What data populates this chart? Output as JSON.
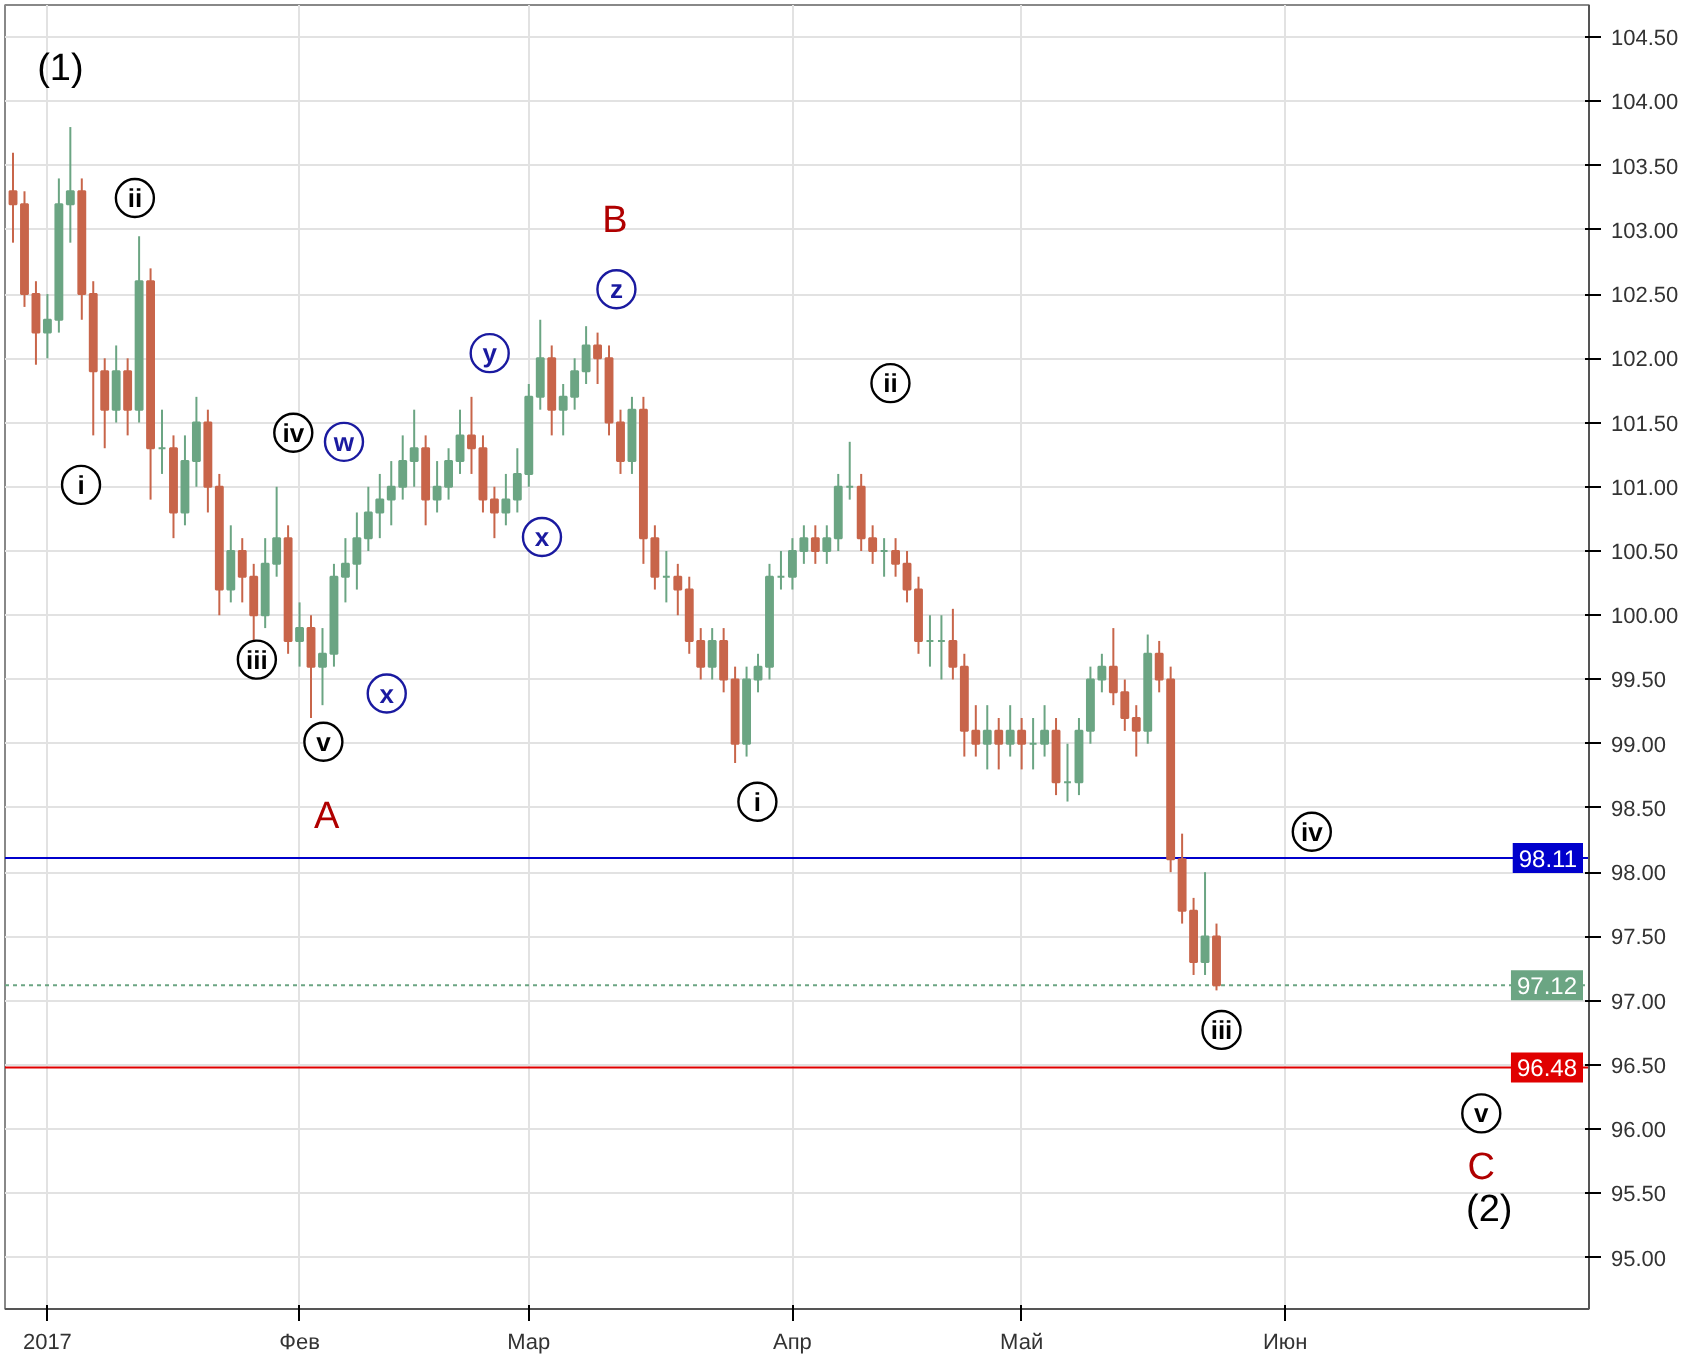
{
  "chart_data": {
    "type": "candlestick",
    "categories": [
      null,
      null,
      null,
      "2017",
      null,
      null,
      null,
      null,
      null,
      null,
      null,
      null,
      null,
      null,
      null,
      null,
      null,
      null,
      null,
      null,
      null,
      null,
      null,
      null,
      null,
      "Фев",
      null,
      null,
      null,
      null,
      null,
      null,
      null,
      null,
      null,
      null,
      null,
      null,
      null,
      null,
      null,
      null,
      null,
      null,
      null,
      "Мар",
      null,
      null,
      null,
      null,
      null,
      null,
      null,
      null,
      null,
      null,
      null,
      null,
      null,
      null,
      null,
      null,
      null,
      null,
      null,
      null,
      null,
      null,
      "Апр",
      null,
      null,
      null,
      null,
      null,
      null,
      null,
      null,
      null,
      null,
      null,
      null,
      null,
      null,
      null,
      null,
      null,
      null,
      null,
      "Май",
      null,
      null,
      null,
      null,
      null,
      null,
      null,
      null,
      null,
      null,
      null,
      null,
      null,
      null,
      null,
      null,
      null,
      null,
      null,
      null,
      null,
      null,
      "Июн",
      null,
      null,
      null,
      null,
      null,
      null,
      null,
      null,
      null,
      null,
      null,
      null,
      null,
      null,
      null,
      null,
      null,
      null,
      null,
      null,
      null,
      null,
      null,
      null,
      null,
      null
    ],
    "ohlc": [
      [
        103.3,
        103.6,
        102.9,
        103.2
      ],
      [
        103.2,
        103.3,
        102.4,
        102.5
      ],
      [
        102.5,
        102.6,
        101.95,
        102.2
      ],
      [
        102.2,
        102.5,
        102.0,
        102.3
      ],
      [
        102.3,
        103.4,
        102.2,
        103.2
      ],
      [
        103.2,
        103.8,
        102.9,
        103.3
      ],
      [
        103.3,
        103.4,
        102.3,
        102.5
      ],
      [
        102.5,
        102.6,
        101.4,
        101.9
      ],
      [
        101.9,
        102.0,
        101.3,
        101.6
      ],
      [
        101.6,
        102.1,
        101.5,
        101.9
      ],
      [
        101.9,
        102.0,
        101.4,
        101.6
      ],
      [
        101.6,
        102.95,
        101.5,
        102.6
      ],
      [
        102.6,
        102.7,
        100.9,
        101.3
      ],
      [
        101.3,
        101.6,
        101.1,
        101.3
      ],
      [
        101.3,
        101.4,
        100.6,
        100.8
      ],
      [
        100.8,
        101.4,
        100.7,
        101.2
      ],
      [
        101.2,
        101.7,
        101.0,
        101.5
      ],
      [
        101.5,
        101.6,
        100.8,
        101.0
      ],
      [
        101.0,
        101.1,
        100.0,
        100.2
      ],
      [
        100.2,
        100.7,
        100.1,
        100.5
      ],
      [
        100.5,
        100.6,
        100.1,
        100.3
      ],
      [
        100.3,
        100.4,
        99.8,
        100.0
      ],
      [
        100.0,
        100.6,
        99.9,
        100.4
      ],
      [
        100.4,
        101.0,
        100.3,
        100.6
      ],
      [
        100.6,
        100.7,
        99.7,
        99.8
      ],
      [
        99.8,
        100.1,
        99.6,
        99.9
      ],
      [
        99.9,
        100.0,
        99.2,
        99.6
      ],
      [
        99.6,
        99.9,
        99.3,
        99.7
      ],
      [
        99.7,
        100.4,
        99.6,
        100.3
      ],
      [
        100.3,
        100.6,
        100.1,
        100.4
      ],
      [
        100.4,
        100.8,
        100.2,
        100.6
      ],
      [
        100.6,
        101.0,
        100.5,
        100.8
      ],
      [
        100.8,
        101.1,
        100.6,
        100.9
      ],
      [
        100.9,
        101.2,
        100.7,
        101.0
      ],
      [
        101.0,
        101.4,
        100.9,
        101.2
      ],
      [
        101.2,
        101.6,
        101.0,
        101.3
      ],
      [
        101.3,
        101.4,
        100.7,
        100.9
      ],
      [
        100.9,
        101.2,
        100.8,
        101.0
      ],
      [
        101.0,
        101.3,
        100.9,
        101.2
      ],
      [
        101.2,
        101.6,
        101.1,
        101.4
      ],
      [
        101.4,
        101.7,
        101.1,
        101.3
      ],
      [
        101.3,
        101.4,
        100.8,
        100.9
      ],
      [
        100.9,
        101.0,
        100.6,
        100.8
      ],
      [
        100.8,
        101.1,
        100.7,
        100.9
      ],
      [
        100.9,
        101.3,
        100.8,
        101.1
      ],
      [
        101.1,
        101.8,
        101.0,
        101.7
      ],
      [
        101.7,
        102.3,
        101.6,
        102.0
      ],
      [
        102.0,
        102.1,
        101.4,
        101.6
      ],
      [
        101.6,
        101.8,
        101.4,
        101.7
      ],
      [
        101.7,
        102.0,
        101.6,
        101.9
      ],
      [
        101.9,
        102.25,
        101.8,
        102.1
      ],
      [
        102.1,
        102.2,
        101.8,
        102.0
      ],
      [
        102.0,
        102.1,
        101.4,
        101.5
      ],
      [
        101.5,
        101.6,
        101.1,
        101.2
      ],
      [
        101.2,
        101.7,
        101.1,
        101.6
      ],
      [
        101.6,
        101.7,
        100.4,
        100.6
      ],
      [
        100.6,
        100.7,
        100.2,
        100.3
      ],
      [
        100.3,
        100.5,
        100.1,
        100.3
      ],
      [
        100.3,
        100.4,
        100.0,
        100.2
      ],
      [
        100.2,
        100.3,
        99.7,
        99.8
      ],
      [
        99.8,
        99.9,
        99.5,
        99.6
      ],
      [
        99.6,
        99.9,
        99.5,
        99.8
      ],
      [
        99.8,
        99.9,
        99.4,
        99.5
      ],
      [
        99.5,
        99.6,
        98.85,
        99.0
      ],
      [
        99.0,
        99.6,
        98.9,
        99.5
      ],
      [
        99.5,
        99.7,
        99.4,
        99.6
      ],
      [
        99.6,
        100.4,
        99.5,
        100.3
      ],
      [
        100.3,
        100.5,
        100.2,
        100.3
      ],
      [
        100.3,
        100.6,
        100.2,
        100.5
      ],
      [
        100.5,
        100.7,
        100.4,
        100.6
      ],
      [
        100.6,
        100.7,
        100.4,
        100.5
      ],
      [
        100.5,
        100.7,
        100.4,
        100.6
      ],
      [
        100.6,
        101.1,
        100.5,
        101.0
      ],
      [
        101.0,
        101.35,
        100.9,
        101.0
      ],
      [
        101.0,
        101.1,
        100.5,
        100.6
      ],
      [
        100.6,
        100.7,
        100.4,
        100.5
      ],
      [
        100.5,
        100.6,
        100.3,
        100.5
      ],
      [
        100.5,
        100.6,
        100.3,
        100.4
      ],
      [
        100.4,
        100.5,
        100.1,
        100.2
      ],
      [
        100.2,
        100.3,
        99.7,
        99.8
      ],
      [
        99.8,
        100.0,
        99.6,
        99.8
      ],
      [
        99.8,
        100.0,
        99.5,
        99.8
      ],
      [
        99.8,
        100.05,
        99.5,
        99.6
      ],
      [
        99.6,
        99.7,
        98.9,
        99.1
      ],
      [
        99.1,
        99.3,
        98.9,
        99.0
      ],
      [
        99.0,
        99.3,
        98.8,
        99.1
      ],
      [
        99.1,
        99.2,
        98.8,
        99.0
      ],
      [
        99.0,
        99.3,
        98.9,
        99.1
      ],
      [
        99.1,
        99.2,
        98.8,
        99.0
      ],
      [
        99.0,
        99.2,
        98.8,
        99.0
      ],
      [
        99.0,
        99.3,
        98.9,
        99.1
      ],
      [
        99.1,
        99.2,
        98.6,
        98.7
      ],
      [
        98.7,
        99.0,
        98.55,
        98.7
      ],
      [
        98.7,
        99.2,
        98.6,
        99.1
      ],
      [
        99.1,
        99.6,
        99.0,
        99.5
      ],
      [
        99.5,
        99.7,
        99.4,
        99.6
      ],
      [
        99.6,
        99.9,
        99.3,
        99.4
      ],
      [
        99.4,
        99.5,
        99.1,
        99.2
      ],
      [
        99.2,
        99.3,
        98.9,
        99.1
      ],
      [
        99.1,
        99.85,
        99.0,
        99.7
      ],
      [
        99.7,
        99.8,
        99.4,
        99.5
      ],
      [
        99.5,
        99.6,
        98.0,
        98.1
      ],
      [
        98.1,
        98.3,
        97.6,
        97.7
      ],
      [
        97.7,
        97.8,
        97.2,
        97.3
      ],
      [
        97.3,
        98.0,
        97.2,
        97.5
      ],
      [
        97.5,
        97.6,
        97.08,
        97.12
      ],
      null,
      null,
      null,
      null,
      null,
      null,
      null,
      null,
      null,
      null,
      null,
      null,
      null,
      null,
      null,
      null,
      null,
      null,
      null,
      null,
      null,
      null,
      null,
      null,
      null,
      null,
      null,
      null,
      null,
      null,
      null,
      null
    ],
    "ylim": [
      94.6,
      104.75
    ],
    "yticks": [
      {
        "value": 95,
        "label": "95.00"
      },
      {
        "value": 95.5,
        "label": "95.50"
      },
      {
        "value": 96,
        "label": "96.00"
      },
      {
        "value": 96.5,
        "label": "96.50"
      },
      {
        "value": 97,
        "label": "97.00"
      },
      {
        "value": 97.5,
        "label": "97.50"
      },
      {
        "value": 98,
        "label": "98.00"
      },
      {
        "value": 98.5,
        "label": "98.50"
      },
      {
        "value": 99,
        "label": "99.00"
      },
      {
        "value": 99.5,
        "label": "99.50"
      },
      {
        "value": 100,
        "label": "100.00"
      },
      {
        "value": 100.5,
        "label": "100.50"
      },
      {
        "value": 101,
        "label": "101.00"
      },
      {
        "value": 101.5,
        "label": "101.50"
      },
      {
        "value": 102,
        "label": "102.00"
      },
      {
        "value": 102.5,
        "label": "102.50"
      },
      {
        "value": 103,
        "label": "103.00"
      },
      {
        "value": 103.5,
        "label": "103.50"
      },
      {
        "value": 104,
        "label": "104.00"
      },
      {
        "value": 104.5,
        "label": "104.50"
      }
    ],
    "grid": true,
    "ref_lines": [
      {
        "axis": "y",
        "value": 98.11,
        "label": "98.11",
        "color": "#0000cc",
        "line_style": "solid"
      },
      {
        "axis": "y",
        "value": 97.12,
        "label": "97.12",
        "color": "#6ba583",
        "line_style": "dotted"
      },
      {
        "axis": "y",
        "value": 96.48,
        "label": "96.48",
        "color": "#e00000",
        "line_style": "solid"
      }
    ],
    "annotations": [
      "(1)",
      "A",
      "B",
      "C",
      "(2)",
      "ii",
      "i",
      "iv",
      "iii",
      "v",
      "w",
      "x",
      "y",
      "x",
      "z",
      "i",
      "ii",
      "iii",
      "iv",
      "v"
    ]
  }
}
